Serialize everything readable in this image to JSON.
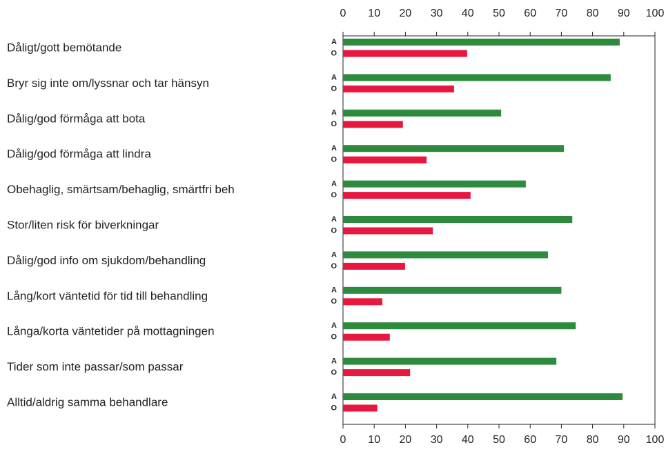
{
  "chart_data": {
    "type": "barh",
    "categories": [
      "Dåligt/gott bemötande",
      "Bryr sig inte om/lyssnar och tar hänsyn",
      "Dålig/god förmåga att bota",
      "Dålig/god förmåga att lindra",
      "Obehaglig, smärtsam/behaglig, smärtfri beh",
      "Stor/liten risk för biverkningar",
      "Dålig/god info om sjukdom/behandling",
      "Lång/kort väntetid för tid till behandling",
      "Långa/korta väntetider på mottagningen",
      "Tider som inte passar/som passar",
      "Alltid/aldrig samma behandlare"
    ],
    "series": [
      {
        "name": "A",
        "color": "#2e8b3e",
        "values": [
          88.7,
          85.8,
          50.7,
          70.8,
          58.6,
          73.5,
          65.7,
          70,
          74.6,
          68.4,
          89.6
        ]
      },
      {
        "name": "O",
        "color": "#e8173f",
        "values": [
          39.8,
          35.6,
          19.2,
          26.8,
          40.9,
          28.8,
          19.9,
          12.6,
          15,
          21.5,
          11
        ]
      }
    ],
    "xlim": [
      0,
      100
    ],
    "xticks": [
      0,
      10,
      20,
      30,
      40,
      50,
      60,
      70,
      80,
      90,
      100
    ]
  }
}
